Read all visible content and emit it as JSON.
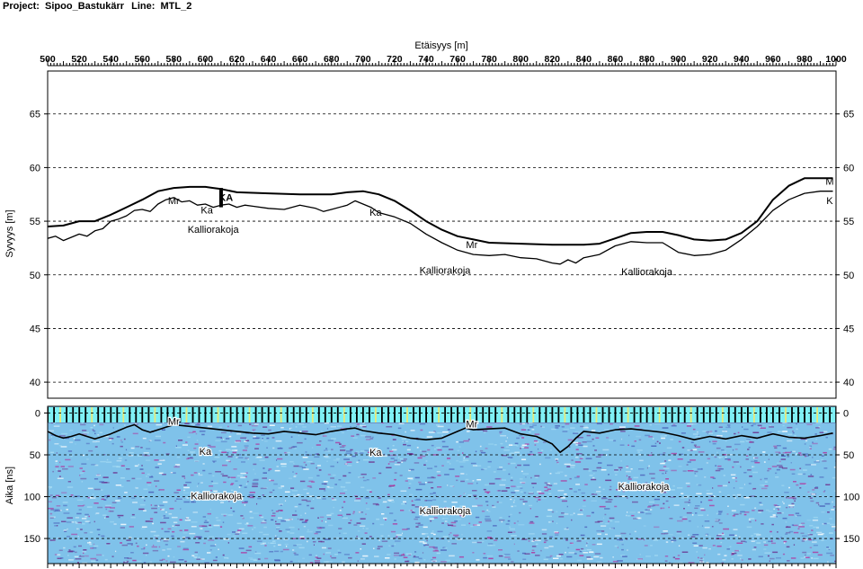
{
  "header": {
    "project_label": "Project:",
    "project_name": "Sipoo_Bastukärr",
    "line_label": "Line:",
    "line_name": "MTL_2"
  },
  "colors": {
    "frame": "#000000",
    "gridline": "#000000",
    "profile": "#000000",
    "radar_background": "#7fc2ea",
    "radar_noise_purple": "#6a2d8c",
    "radar_noise_magenta": "#b0359e",
    "radar_light": "#a7dcf4",
    "marker_cyan": "#7ff0f5",
    "marker_yellow": "#e8e87a"
  },
  "chart_data": [
    {
      "type": "line",
      "panel": "depth-profile",
      "xlabel": "Etäisyys [m]",
      "ylabel": "Syvyys [m]",
      "xlim": [
        500,
        1000
      ],
      "ylim": [
        38.5,
        69
      ],
      "x_ticks": [
        500,
        520,
        540,
        560,
        580,
        600,
        620,
        640,
        660,
        680,
        700,
        720,
        740,
        760,
        780,
        800,
        820,
        840,
        860,
        880,
        900,
        920,
        940,
        960,
        980,
        1000
      ],
      "y_ticks": [
        40,
        45,
        50,
        55,
        60,
        65
      ],
      "grid": "horizontal dashed",
      "series": [
        {
          "role": "ground-surface",
          "points": [
            [
              500,
              54.5
            ],
            [
              510,
              54.6
            ],
            [
              520,
              55.0
            ],
            [
              530,
              55.0
            ],
            [
              540,
              55.6
            ],
            [
              550,
              56.3
            ],
            [
              560,
              57.0
            ],
            [
              570,
              57.8
            ],
            [
              580,
              58.1
            ],
            [
              590,
              58.2
            ],
            [
              600,
              58.2
            ],
            [
              605,
              58.1
            ],
            [
              610,
              58.0
            ],
            [
              620,
              57.7
            ],
            [
              640,
              57.6
            ],
            [
              660,
              57.5
            ],
            [
              680,
              57.5
            ],
            [
              690,
              57.7
            ],
            [
              700,
              57.8
            ],
            [
              710,
              57.5
            ],
            [
              720,
              56.9
            ],
            [
              730,
              56.0
            ],
            [
              740,
              55.0
            ],
            [
              750,
              54.2
            ],
            [
              760,
              53.6
            ],
            [
              770,
              53.3
            ],
            [
              780,
              53.0
            ],
            [
              800,
              52.9
            ],
            [
              820,
              52.8
            ],
            [
              840,
              52.8
            ],
            [
              850,
              52.9
            ],
            [
              860,
              53.4
            ],
            [
              870,
              53.9
            ],
            [
              880,
              54.0
            ],
            [
              890,
              54.0
            ],
            [
              900,
              53.7
            ],
            [
              910,
              53.3
            ],
            [
              920,
              53.2
            ],
            [
              930,
              53.3
            ],
            [
              940,
              53.9
            ],
            [
              950,
              55.0
            ],
            [
              960,
              57.0
            ],
            [
              970,
              58.3
            ],
            [
              980,
              59.0
            ],
            [
              990,
              59.0
            ],
            [
              998,
              59.0
            ]
          ]
        },
        {
          "role": "bedrock-surface",
          "points": [
            [
              500,
              53.4
            ],
            [
              505,
              53.6
            ],
            [
              510,
              53.2
            ],
            [
              515,
              53.5
            ],
            [
              520,
              53.8
            ],
            [
              525,
              53.6
            ],
            [
              530,
              54.1
            ],
            [
              535,
              54.3
            ],
            [
              540,
              55.0
            ],
            [
              545,
              55.2
            ],
            [
              550,
              55.5
            ],
            [
              555,
              56.0
            ],
            [
              560,
              56.1
            ],
            [
              565,
              55.9
            ],
            [
              570,
              56.6
            ],
            [
              575,
              57.0
            ],
            [
              580,
              57.2
            ],
            [
              585,
              56.8
            ],
            [
              590,
              56.9
            ],
            [
              595,
              56.5
            ],
            [
              600,
              56.6
            ],
            [
              605,
              56.3
            ],
            [
              610,
              56.5
            ],
            [
              615,
              56.6
            ],
            [
              620,
              56.3
            ],
            [
              625,
              56.5
            ],
            [
              630,
              56.4
            ],
            [
              640,
              56.2
            ],
            [
              650,
              56.1
            ],
            [
              660,
              56.5
            ],
            [
              670,
              56.2
            ],
            [
              675,
              55.9
            ],
            [
              680,
              56.1
            ],
            [
              690,
              56.5
            ],
            [
              695,
              56.9
            ],
            [
              700,
              56.6
            ],
            [
              705,
              56.3
            ],
            [
              710,
              55.8
            ],
            [
              720,
              55.4
            ],
            [
              730,
              54.8
            ],
            [
              740,
              53.8
            ],
            [
              750,
              53.0
            ],
            [
              760,
              52.3
            ],
            [
              770,
              51.9
            ],
            [
              780,
              51.8
            ],
            [
              790,
              51.9
            ],
            [
              800,
              51.6
            ],
            [
              810,
              51.5
            ],
            [
              820,
              51.1
            ],
            [
              825,
              51.0
            ],
            [
              830,
              51.4
            ],
            [
              835,
              51.1
            ],
            [
              840,
              51.6
            ],
            [
              850,
              51.9
            ],
            [
              860,
              52.7
            ],
            [
              870,
              53.1
            ],
            [
              880,
              53.0
            ],
            [
              890,
              53.0
            ],
            [
              900,
              52.1
            ],
            [
              910,
              51.8
            ],
            [
              920,
              51.9
            ],
            [
              930,
              52.3
            ],
            [
              940,
              53.3
            ],
            [
              950,
              54.5
            ],
            [
              960,
              56.0
            ],
            [
              970,
              57.0
            ],
            [
              980,
              57.6
            ],
            [
              990,
              57.8
            ],
            [
              998,
              57.8
            ]
          ]
        }
      ],
      "annotations": [
        {
          "text": "Mr",
          "x": 580,
          "y": 56.6
        },
        {
          "text": "Ka",
          "x": 601,
          "y": 55.7
        },
        {
          "text": "KA",
          "x": 613,
          "y": 56.9
        },
        {
          "text": "Kalliorakoja",
          "x": 605,
          "y": 53.9
        },
        {
          "text": "Ka",
          "x": 708,
          "y": 55.5
        },
        {
          "text": "Mr",
          "x": 769,
          "y": 52.5
        },
        {
          "text": "Kalliorakoja",
          "x": 752,
          "y": 50.1
        },
        {
          "text": "Kalliorakoja",
          "x": 880,
          "y": 50.0
        },
        {
          "text": "M",
          "x": 996,
          "y": 58.4
        },
        {
          "text": "K",
          "x": 996,
          "y": 56.6
        }
      ],
      "vertical_marker": {
        "label": "KA",
        "x": 610,
        "from": 56.3,
        "to": 58.1
      }
    },
    {
      "type": "heatmap",
      "panel": "radargram",
      "ylabel": "Aika [ns]",
      "xlim": [
        500,
        1000
      ],
      "ylim": [
        180,
        -8
      ],
      "y_ticks": [
        0,
        50,
        100,
        150
      ],
      "grid": "horizontal dashed",
      "trace": {
        "role": "interpreted-bedrock-reflection",
        "points": [
          [
            500,
            22
          ],
          [
            505,
            27
          ],
          [
            510,
            30
          ],
          [
            515,
            28
          ],
          [
            520,
            25
          ],
          [
            525,
            28
          ],
          [
            530,
            31
          ],
          [
            535,
            28
          ],
          [
            540,
            25
          ],
          [
            545,
            21
          ],
          [
            550,
            17
          ],
          [
            555,
            14
          ],
          [
            560,
            20
          ],
          [
            565,
            23
          ],
          [
            570,
            20
          ],
          [
            575,
            17
          ],
          [
            580,
            14
          ],
          [
            590,
            16
          ],
          [
            600,
            18
          ],
          [
            610,
            20
          ],
          [
            620,
            22
          ],
          [
            630,
            24
          ],
          [
            640,
            25
          ],
          [
            650,
            22
          ],
          [
            660,
            24
          ],
          [
            670,
            26
          ],
          [
            680,
            22
          ],
          [
            690,
            19
          ],
          [
            695,
            18
          ],
          [
            700,
            21
          ],
          [
            710,
            24
          ],
          [
            720,
            26
          ],
          [
            730,
            30
          ],
          [
            740,
            32
          ],
          [
            750,
            30
          ],
          [
            760,
            22
          ],
          [
            765,
            18
          ],
          [
            770,
            20
          ],
          [
            780,
            19
          ],
          [
            790,
            18
          ],
          [
            800,
            25
          ],
          [
            810,
            28
          ],
          [
            820,
            37
          ],
          [
            825,
            47
          ],
          [
            830,
            40
          ],
          [
            835,
            30
          ],
          [
            840,
            22
          ],
          [
            850,
            24
          ],
          [
            860,
            20
          ],
          [
            870,
            19
          ],
          [
            880,
            21
          ],
          [
            890,
            23
          ],
          [
            900,
            27
          ],
          [
            910,
            32
          ],
          [
            920,
            28
          ],
          [
            930,
            31
          ],
          [
            940,
            27
          ],
          [
            950,
            30
          ],
          [
            960,
            25
          ],
          [
            970,
            29
          ],
          [
            980,
            30
          ],
          [
            990,
            27
          ],
          [
            998,
            24
          ]
        ]
      },
      "annotations": [
        {
          "text": "Mr",
          "x": 580,
          "y": 14
        },
        {
          "text": "Ka",
          "x": 600,
          "y": 50
        },
        {
          "text": "Kalliorakoja",
          "x": 607,
          "y": 103
        },
        {
          "text": "Ka",
          "x": 708,
          "y": 51
        },
        {
          "text": "Mr",
          "x": 769,
          "y": 17
        },
        {
          "text": "Kalliorakoja",
          "x": 752,
          "y": 121
        },
        {
          "text": "Kalliorakoja",
          "x": 878,
          "y": 92
        }
      ]
    }
  ]
}
